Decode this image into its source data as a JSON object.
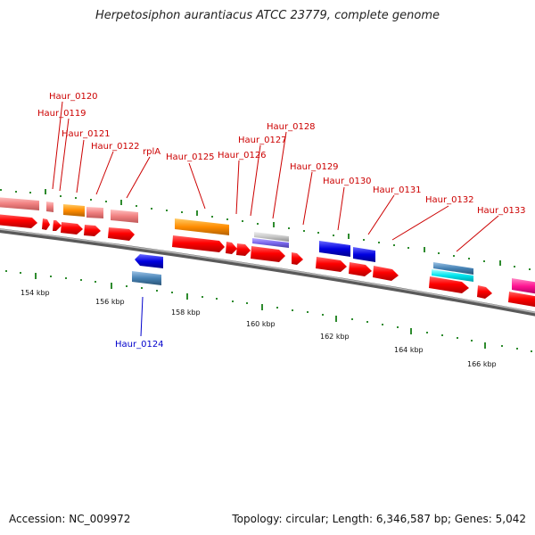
{
  "title": "Herpetosiphon aurantiacus ATCC 23779, complete genome",
  "accession": "Accession: NC_009972",
  "topology": "Topology: circular; Length: 6,346,587 bp; Genes: 5,042",
  "colors": {
    "backbone": "#7f7f7f",
    "cds_forward": "#ff0000",
    "cds_light": "#f08080",
    "orange": "#ff8c00",
    "blue": "#0000e0",
    "steelblue": "#4682b4",
    "cyan": "#00e5ee",
    "gray": "#c8c8c8",
    "slate": "#7b68ee",
    "magenta": "#ff1493",
    "tick": "#2e8b2e",
    "label_red": "#cc0000",
    "label_blue": "#0000cc"
  },
  "scale_labels": [
    "154 kbp",
    "156 kbp",
    "158 kbp",
    "160 kbp",
    "162 kbp",
    "164 kbp",
    "166 kbp"
  ],
  "gene_labels": [
    {
      "text": "Haur_0120",
      "strand": "forward"
    },
    {
      "text": "Haur_0119",
      "strand": "forward"
    },
    {
      "text": "Haur_0121",
      "strand": "forward"
    },
    {
      "text": "Haur_0122",
      "strand": "forward"
    },
    {
      "text": "rplA",
      "strand": "forward"
    },
    {
      "text": "Haur_0125",
      "strand": "forward"
    },
    {
      "text": "Haur_0126",
      "strand": "forward"
    },
    {
      "text": "Haur_0127",
      "strand": "forward"
    },
    {
      "text": "Haur_0128",
      "strand": "forward"
    },
    {
      "text": "Haur_0129",
      "strand": "forward"
    },
    {
      "text": "Haur_0130",
      "strand": "forward"
    },
    {
      "text": "Haur_0131",
      "strand": "forward"
    },
    {
      "text": "Haur_0132",
      "strand": "forward"
    },
    {
      "text": "Haur_0133",
      "strand": "forward"
    },
    {
      "text": "Haur_0124",
      "strand": "reverse"
    }
  ]
}
